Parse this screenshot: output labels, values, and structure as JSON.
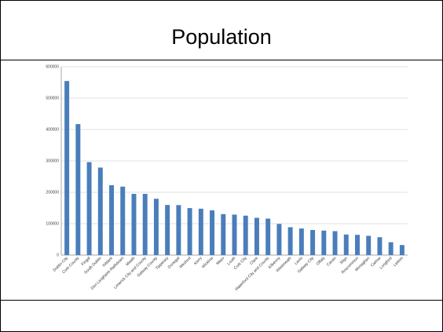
{
  "title": "Population",
  "colors": {
    "bar": "#4a7ebb",
    "grid": "#d9d9d9",
    "axis": "#868686"
  },
  "chart_data": {
    "type": "bar",
    "title": "",
    "xlabel": "",
    "ylabel": "",
    "ylim": [
      0,
      600000
    ],
    "yticks": [
      "0",
      "100000",
      "200000",
      "300000",
      "400000",
      "500000",
      "600000"
    ],
    "grid": true,
    "legend": "none",
    "categories": [
      "Dublin City",
      "Cork County",
      "Fingal",
      "South Dublin",
      "Kildare",
      "Dún Laoghaire-Rathdown",
      "Meath",
      "Limerick City and County",
      "Galway County",
      "Tipperary",
      "Donegal",
      "Wexford",
      "Kerry",
      "Wicklow",
      "Mayo",
      "Louth",
      "Cork City",
      "Clare",
      "Waterford City and County",
      "Kilkenny",
      "Westmeath",
      "Laois",
      "Galway City",
      "Offaly",
      "Cavan",
      "Sligo",
      "Roscommon",
      "Monaghan",
      "Carlow",
      "Longford",
      "Leitrim"
    ],
    "values": [
      554500,
      417200,
      296000,
      278800,
      222500,
      218000,
      195000,
      194900,
      179400,
      159600,
      159200,
      149700,
      147700,
      142400,
      130500,
      128900,
      125600,
      118800,
      116200,
      99200,
      88800,
      84700,
      79900,
      78000,
      76200,
      65500,
      64500,
      61400,
      56900,
      40900,
      32000
    ]
  }
}
